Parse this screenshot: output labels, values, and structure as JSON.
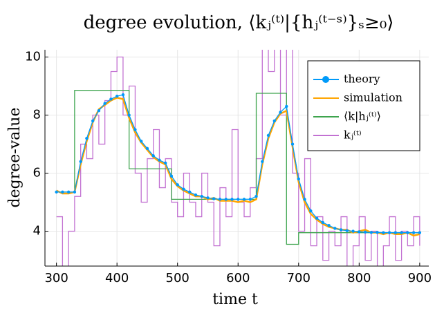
{
  "chart_data": {
    "type": "line",
    "title": "degree evolution, ⟨kⱼ⁽ᵗ⁾|{hⱼ⁽ᵗ⁻ˢ⁾}ₛ≥₀⟩",
    "x_label": "time t",
    "y_label": "degree-value",
    "x": [
      300,
      310,
      320,
      330,
      340,
      350,
      360,
      370,
      380,
      390,
      400,
      410,
      420,
      430,
      440,
      450,
      460,
      470,
      480,
      490,
      500,
      510,
      520,
      530,
      540,
      550,
      560,
      570,
      580,
      590,
      600,
      610,
      620,
      630,
      640,
      650,
      660,
      670,
      680,
      690,
      700,
      710,
      720,
      730,
      740,
      750,
      760,
      770,
      780,
      790,
      800,
      810,
      820,
      830,
      840,
      850,
      860,
      870,
      880,
      890,
      900
    ],
    "series": [
      {
        "name": "theory",
        "color": "#009af9",
        "markers": true,
        "values": [
          5.35,
          5.35,
          5.35,
          5.35,
          6.4,
          7.2,
          7.8,
          8.15,
          8.4,
          8.55,
          8.65,
          8.7,
          8.0,
          7.5,
          7.1,
          6.85,
          6.6,
          6.45,
          6.35,
          5.9,
          5.6,
          5.45,
          5.35,
          5.25,
          5.2,
          5.15,
          5.12,
          5.1,
          5.1,
          5.1,
          5.1,
          5.1,
          5.1,
          5.2,
          6.4,
          7.3,
          7.8,
          8.1,
          8.3,
          7.0,
          5.8,
          5.1,
          4.7,
          4.45,
          4.3,
          4.2,
          4.1,
          4.05,
          4.02,
          4.0,
          3.98,
          3.97,
          3.96,
          3.96,
          3.95,
          3.95,
          3.95,
          3.95,
          3.95,
          3.95,
          3.95
        ]
      },
      {
        "name": "simulation",
        "color": "#ffa500",
        "values": [
          5.4,
          5.3,
          5.3,
          5.35,
          6.3,
          7.1,
          7.75,
          8.2,
          8.35,
          8.5,
          8.6,
          8.55,
          7.9,
          7.4,
          7.05,
          6.8,
          6.55,
          6.4,
          6.3,
          5.8,
          5.55,
          5.4,
          5.3,
          5.2,
          5.2,
          5.1,
          5.15,
          5.05,
          5.05,
          5.05,
          5.0,
          5.05,
          5.0,
          5.1,
          6.3,
          7.2,
          7.75,
          8.05,
          8.15,
          6.9,
          5.7,
          5.0,
          4.6,
          4.4,
          4.25,
          4.15,
          4.1,
          4.05,
          4.05,
          3.95,
          4.0,
          4.05,
          3.95,
          3.95,
          3.9,
          3.95,
          3.9,
          3.9,
          3.95,
          3.85,
          3.9
        ]
      },
      {
        "name": "⟨k|hⱼ⁽ᵗ⁾⟩",
        "color": "#3ea44e",
        "step": true,
        "values": [
          5.35,
          5.35,
          5.35,
          8.85,
          8.85,
          8.85,
          8.85,
          8.85,
          8.85,
          8.85,
          8.85,
          8.85,
          6.15,
          6.15,
          6.15,
          6.15,
          6.15,
          6.15,
          6.15,
          5.1,
          5.1,
          5.1,
          5.1,
          5.1,
          5.1,
          5.1,
          5.1,
          5.1,
          5.1,
          5.1,
          5.1,
          5.1,
          5.1,
          8.75,
          8.75,
          8.75,
          8.75,
          8.75,
          3.55,
          3.55,
          3.95,
          3.95,
          3.95,
          3.95,
          3.95,
          3.95,
          3.95,
          3.95,
          3.95,
          3.95,
          3.95,
          3.95,
          3.95,
          3.95,
          3.95,
          3.95,
          3.95,
          3.95,
          3.95,
          3.95,
          3.95
        ]
      },
      {
        "name": "kⱼ⁽ᵗ⁾",
        "color": "#c271d2",
        "step": true,
        "values": [
          4.5,
          2.5,
          4,
          5.2,
          7,
          6.5,
          8,
          7,
          8.5,
          9.5,
          10,
          8,
          9,
          6,
          5,
          6.5,
          7.5,
          5.5,
          6.5,
          5,
          4.5,
          6,
          5,
          4.5,
          6,
          5,
          3.5,
          5.5,
          4.5,
          7.5,
          5,
          4.5,
          5.5,
          6.5,
          10.5,
          9.5,
          11,
          8,
          10.5,
          6,
          4,
          6.5,
          3.5,
          4.5,
          3,
          4,
          3.5,
          4.5,
          2.5,
          3.5,
          4.5,
          3,
          4,
          2.5,
          3.5,
          4.5,
          3,
          4,
          3.5,
          4.5,
          3.5
        ]
      }
    ],
    "xlim": [
      281,
      915
    ],
    "ylim": [
      2.8,
      10.25
    ],
    "xticks": [
      300,
      400,
      500,
      600,
      700,
      800,
      900
    ],
    "yticks": [
      4,
      6,
      8,
      10
    ],
    "grid": true,
    "legend": "top-right"
  }
}
